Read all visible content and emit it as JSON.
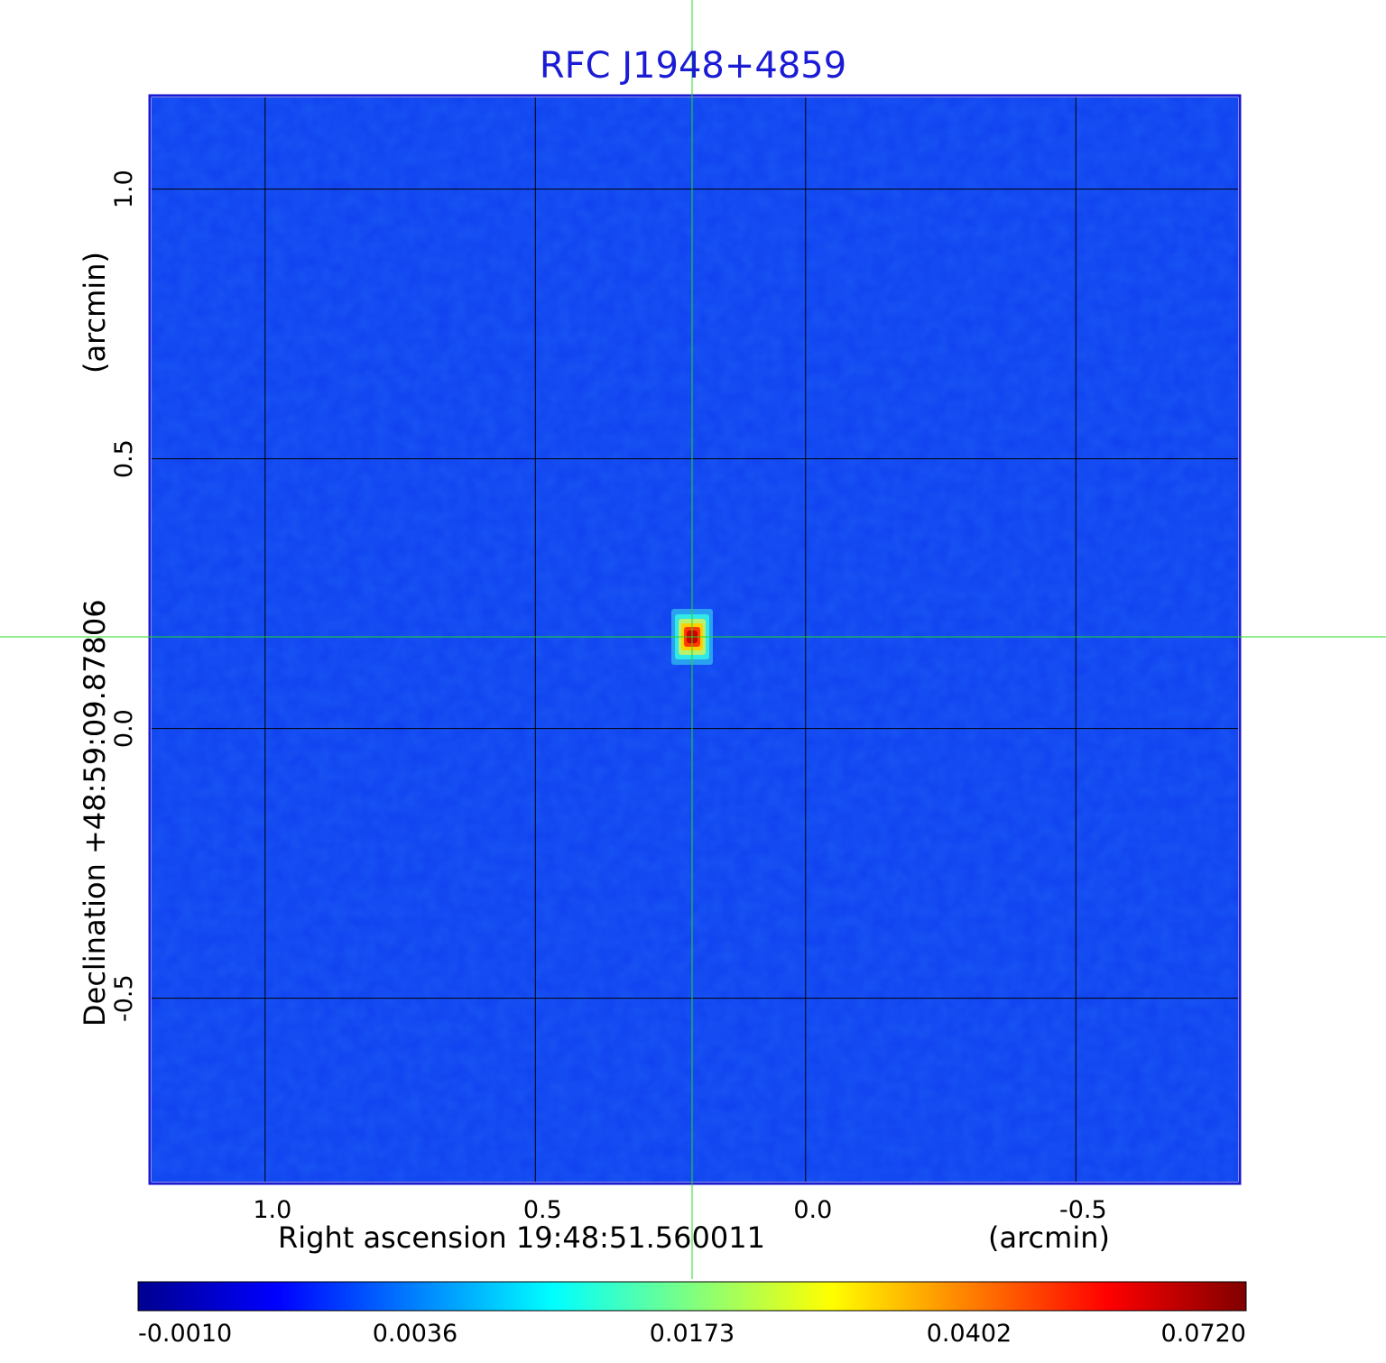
{
  "chart_data": {
    "type": "heatmap",
    "title": "RFC J1948+4859",
    "xlabel": "Right ascension  19:48:51.560011",
    "xunit": "(arcmin)",
    "ylabel": "Declination  +48:59:09.87806",
    "yunit": "(arcmin)",
    "x_ticks": [
      "1.0",
      "0.5",
      "0.0",
      "-0.5"
    ],
    "x_tick_values": [
      1.0,
      0.5,
      0.0,
      -0.5
    ],
    "y_ticks": [
      "1.0",
      "0.5",
      "0.0",
      "-0.5"
    ],
    "y_tick_values": [
      1.0,
      0.5,
      0.0,
      -0.5
    ],
    "xlim": [
      1.21,
      -0.8
    ],
    "ylim": [
      -0.84,
      1.17
    ],
    "grid": true,
    "crosshair": {
      "x": 0.21,
      "y": 0.17
    },
    "peak": {
      "x": 0.21,
      "y": 0.17,
      "value": 0.072
    },
    "background_value": 0.0,
    "colorbar": {
      "ticks": [
        "-0.0010",
        "0.0036",
        "0.0173",
        "0.0402",
        "0.0720"
      ],
      "tick_values": [
        -0.001,
        0.0036,
        0.0173,
        0.0402,
        0.072
      ],
      "colormap": "jet"
    },
    "colors": {
      "title": "#1b1bd6",
      "frame": "#1a1ad0",
      "crosshair": "#22dd22",
      "background": "#1040f0"
    }
  }
}
